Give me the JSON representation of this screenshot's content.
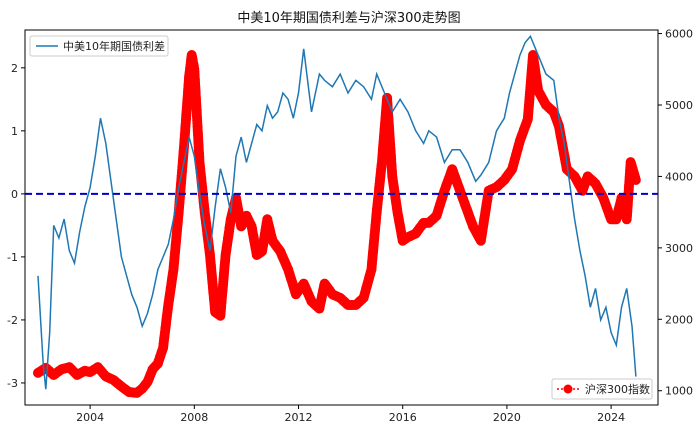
{
  "chart_data": {
    "type": "line",
    "title": "中美10年期国债利差与沪深300走势图",
    "xlabel": "",
    "ylabel": "",
    "ylabel_right": "",
    "xlim": [
      2001.5,
      2025.8
    ],
    "ylim": [
      -3.35,
      2.6
    ],
    "ylim_right": [
      800,
      6050
    ],
    "x_ticks": [
      2004,
      2008,
      2012,
      2016,
      2020,
      2024
    ],
    "y_ticks": [
      -3,
      -2,
      -1,
      0,
      1,
      2
    ],
    "y_ticks_right": [
      1000,
      2000,
      3000,
      4000,
      5000,
      6000
    ],
    "reference_line": {
      "y": 0,
      "color": "#0000cc",
      "style": "dashed"
    },
    "legend_left": {
      "placement": "top-left",
      "label": "中美10年期国债利差"
    },
    "legend_right": {
      "placement": "bottom-right",
      "label": "沪深300指数"
    },
    "colors": {
      "spread": "#1f77b4",
      "index": "#ff0000",
      "zero_line": "#0000cc"
    },
    "series": [
      {
        "name": "中美10年期国债利差",
        "axis": "left",
        "style": "line",
        "x": [
          2002.0,
          2002.1,
          2002.2,
          2002.3,
          2002.45,
          2002.6,
          2002.8,
          2003.0,
          2003.2,
          2003.4,
          2003.6,
          2003.8,
          2004.0,
          2004.2,
          2004.4,
          2004.6,
          2004.8,
          2005.0,
          2005.2,
          2005.4,
          2005.6,
          2005.8,
          2006.0,
          2006.2,
          2006.4,
          2006.6,
          2006.8,
          2007.0,
          2007.2,
          2007.4,
          2007.6,
          2007.8,
          2008.0,
          2008.2,
          2008.4,
          2008.6,
          2008.8,
          2009.0,
          2009.2,
          2009.4,
          2009.6,
          2009.8,
          2010.0,
          2010.2,
          2010.4,
          2010.6,
          2010.8,
          2011.0,
          2011.2,
          2011.4,
          2011.6,
          2011.8,
          2012.0,
          2012.2,
          2012.5,
          2012.8,
          2013.0,
          2013.3,
          2013.6,
          2013.9,
          2014.2,
          2014.5,
          2014.8,
          2015.0,
          2015.3,
          2015.6,
          2015.9,
          2016.2,
          2016.5,
          2016.8,
          2017.0,
          2017.3,
          2017.6,
          2017.9,
          2018.2,
          2018.5,
          2018.8,
          2019.0,
          2019.3,
          2019.6,
          2019.9,
          2020.1,
          2020.3,
          2020.5,
          2020.7,
          2020.9,
          2021.0,
          2021.2,
          2021.5,
          2021.8,
          2022.0,
          2022.2,
          2022.4,
          2022.6,
          2022.8,
          2023.0,
          2023.2,
          2023.4,
          2023.6,
          2023.8,
          2024.0,
          2024.2,
          2024.4,
          2024.6,
          2024.8,
          2024.95
        ],
        "y": [
          -1.3,
          -2.0,
          -2.7,
          -3.1,
          -2.2,
          -0.5,
          -0.7,
          -0.4,
          -0.9,
          -1.1,
          -0.6,
          -0.2,
          0.1,
          0.6,
          1.2,
          0.8,
          0.2,
          -0.4,
          -1.0,
          -1.3,
          -1.6,
          -1.8,
          -2.1,
          -1.9,
          -1.6,
          -1.2,
          -1.0,
          -0.8,
          -0.4,
          0.1,
          0.5,
          0.9,
          0.6,
          0.0,
          -0.5,
          -0.9,
          -0.2,
          0.4,
          0.1,
          -0.3,
          0.6,
          0.9,
          0.5,
          0.8,
          1.1,
          1.0,
          1.4,
          1.2,
          1.3,
          1.6,
          1.5,
          1.2,
          1.6,
          2.3,
          1.3,
          1.9,
          1.8,
          1.7,
          1.9,
          1.6,
          1.8,
          1.7,
          1.5,
          1.9,
          1.6,
          1.3,
          1.5,
          1.3,
          1.0,
          0.8,
          1.0,
          0.9,
          0.5,
          0.7,
          0.7,
          0.5,
          0.2,
          0.3,
          0.5,
          1.0,
          1.2,
          1.6,
          1.9,
          2.2,
          2.4,
          2.5,
          2.4,
          2.2,
          1.9,
          1.8,
          1.2,
          0.8,
          0.2,
          -0.4,
          -0.9,
          -1.3,
          -1.8,
          -1.5,
          -2.0,
          -1.8,
          -2.2,
          -2.4,
          -1.8,
          -1.5,
          -2.1,
          -2.9
        ]
      },
      {
        "name": "沪深300指数",
        "axis": "right",
        "style": "markers",
        "x": [
          2002.0,
          2002.3,
          2002.6,
          2002.9,
          2003.2,
          2003.5,
          2003.8,
          2004.0,
          2004.3,
          2004.6,
          2004.9,
          2005.2,
          2005.5,
          2005.8,
          2006.0,
          2006.2,
          2006.4,
          2006.6,
          2006.8,
          2007.0,
          2007.2,
          2007.4,
          2007.6,
          2007.8,
          2007.9,
          2008.0,
          2008.2,
          2008.4,
          2008.6,
          2008.8,
          2009.0,
          2009.2,
          2009.4,
          2009.6,
          2009.8,
          2010.0,
          2010.2,
          2010.4,
          2010.6,
          2010.8,
          2011.0,
          2011.3,
          2011.6,
          2011.9,
          2012.2,
          2012.5,
          2012.8,
          2013.0,
          2013.3,
          2013.6,
          2013.9,
          2014.2,
          2014.5,
          2014.8,
          2015.0,
          2015.2,
          2015.4,
          2015.6,
          2015.8,
          2016.0,
          2016.2,
          2016.5,
          2016.8,
          2017.0,
          2017.3,
          2017.6,
          2017.9,
          2018.1,
          2018.4,
          2018.7,
          2019.0,
          2019.3,
          2019.6,
          2019.9,
          2020.2,
          2020.5,
          2020.8,
          2021.0,
          2021.2,
          2021.5,
          2021.8,
          2022.0,
          2022.3,
          2022.6,
          2022.9,
          2023.1,
          2023.4,
          2023.7,
          2024.0,
          2024.2,
          2024.4,
          2024.6,
          2024.75,
          2024.95
        ],
        "y": [
          1250,
          1320,
          1220,
          1300,
          1330,
          1220,
          1280,
          1260,
          1330,
          1200,
          1150,
          1060,
          980,
          970,
          1030,
          1120,
          1300,
          1380,
          1600,
          2200,
          2700,
          3500,
          4400,
          5400,
          5700,
          5500,
          4200,
          3500,
          2900,
          2100,
          2050,
          2900,
          3400,
          3700,
          3300,
          3450,
          3300,
          2900,
          2950,
          3400,
          3100,
          2950,
          2700,
          2350,
          2500,
          2250,
          2150,
          2500,
          2350,
          2300,
          2200,
          2200,
          2300,
          2700,
          3500,
          4200,
          5100,
          4000,
          3500,
          3100,
          3150,
          3200,
          3350,
          3350,
          3450,
          3800,
          4100,
          3900,
          3600,
          3300,
          3100,
          3800,
          3850,
          3950,
          4100,
          4500,
          4800,
          5700,
          5200,
          5000,
          4900,
          4700,
          4100,
          4000,
          3800,
          4000,
          3900,
          3700,
          3400,
          3400,
          3700,
          3400,
          4200,
          3950
        ]
      }
    ]
  }
}
